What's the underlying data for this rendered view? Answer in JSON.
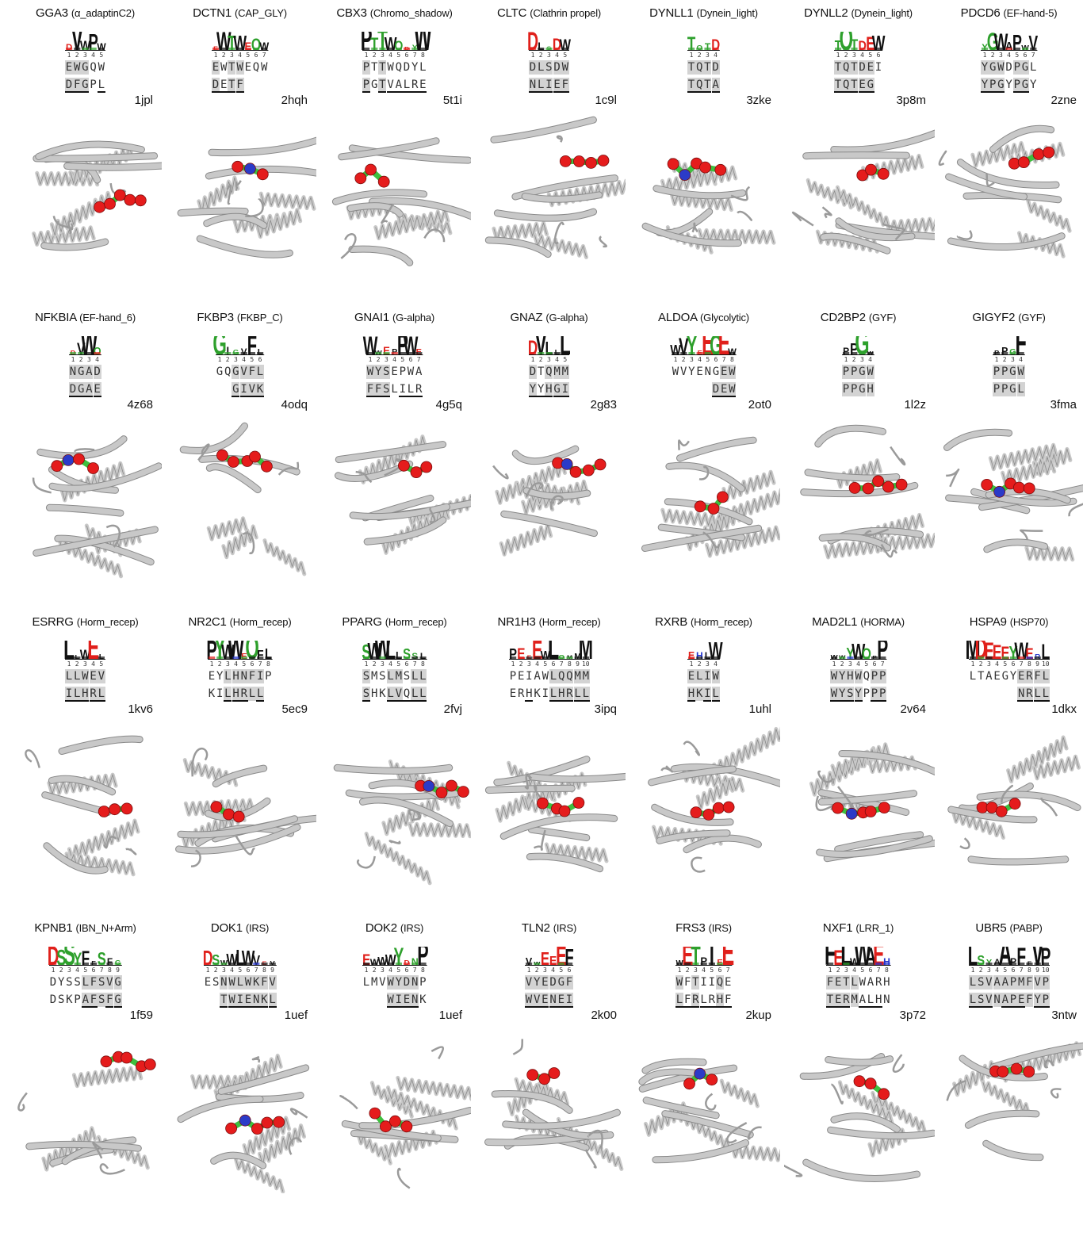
{
  "panels": [
    {
      "gene": "GGA3",
      "family": "(α_adaptinC2)",
      "pdb": "1jpl",
      "seq1": "EWGQW",
      "seq2": "DFGPL",
      "logo": "DVWPW",
      "hl1": [
        0,
        1,
        2
      ],
      "hl2": [
        0,
        1,
        2
      ],
      "ul": [
        0,
        1,
        2,
        4
      ],
      "r2": 0
    },
    {
      "gene": "DCTN1",
      "family": "(CAP_GLY)",
      "pdb": "2hqh",
      "seq1": "EWTWEQW",
      "seq2": "DETF",
      "logo": "EWTWEQW",
      "hl1": [
        0,
        2,
        3
      ],
      "hl2": [
        0,
        2,
        3
      ],
      "ul": [
        0,
        1,
        2,
        3
      ],
      "r2": 0
    },
    {
      "gene": "CBX3",
      "family": "(Chromo_shadow)",
      "pdb": "5t1i",
      "seq1": "PTTWQDYL",
      "seq2": "PGTVALRE",
      "logo": "PTTWQDYW",
      "hl1": [
        0,
        2
      ],
      "hl2": [
        0,
        2
      ],
      "ul": [
        0,
        2,
        3,
        4,
        5,
        6,
        7
      ],
      "r2": 0
    },
    {
      "gene": "CLTC",
      "family": "(Clathrin propel)",
      "pdb": "1c9l",
      "seq1": "DLSDW",
      "seq2": "NLIEF",
      "logo": "DLSDW",
      "hl1": [
        0,
        1,
        2,
        3,
        4
      ],
      "hl2": [
        0,
        1,
        2,
        3,
        4
      ],
      "ul": [
        0,
        1,
        2,
        3,
        4
      ],
      "r2": 0
    },
    {
      "gene": "DYNLL1",
      "family": "(Dynein_light)",
      "pdb": "3zke",
      "seq1": "TQTD",
      "seq2": "TQTA",
      "logo": "TQTD",
      "hl1": [
        0,
        1,
        2,
        3
      ],
      "hl2": [
        0,
        1,
        2,
        3
      ],
      "ul": [
        0,
        1,
        2,
        3
      ],
      "r2": 0
    },
    {
      "gene": "DYNLL2",
      "family": "(Dynein_light)",
      "pdb": "3p8m",
      "seq1": "TQTDEI",
      "seq2": "TQTEG",
      "logo": "TQTDEW",
      "hl1": [
        0,
        1,
        2,
        3,
        4
      ],
      "hl2": [
        0,
        1,
        2,
        3,
        4
      ],
      "ul": [
        0,
        1,
        2,
        3,
        4
      ],
      "r2": 0
    },
    {
      "gene": "PDCD6",
      "family": "(EF-hand-5)",
      "pdb": "2zne",
      "seq1": "YGWDPGL",
      "seq2": "YPGYPGY",
      "logo": "YGWAPWV",
      "hl1": [
        0,
        1,
        2,
        4,
        5
      ],
      "hl2": [
        0,
        1,
        2,
        4,
        5
      ],
      "ul": [
        0,
        1,
        2,
        4,
        5
      ],
      "r2": 0
    },
    {
      "gene": "NFKBIA",
      "family": "(EF-hand_6)",
      "pdb": "4z68",
      "seq1": "NGAD",
      "seq2": "DGAE",
      "logo": "DVWQ",
      "hl1": [
        0,
        1,
        2,
        3
      ],
      "hl2": [
        0,
        1,
        2,
        3
      ],
      "ul": [
        0,
        1,
        2,
        3
      ],
      "r2": 0
    },
    {
      "gene": "FKBP3",
      "family": "(FKBP_C)",
      "pdb": "4odq",
      "seq1": "GQGVFL",
      "seq2": "GIVK",
      "logo": "GIGVFL",
      "hl1": [
        2,
        3,
        4,
        5
      ],
      "hl2": [
        2,
        3,
        4,
        5
      ],
      "ul": [
        2,
        3,
        4,
        5
      ],
      "r2": 2
    },
    {
      "gene": "GNAI1",
      "family": "(G-alpha)",
      "pdb": "4g5q",
      "seq1": "WYSEPWA",
      "seq2": "FFSLILR",
      "logo": "WWEPPWE",
      "hl1": [
        0,
        1,
        2
      ],
      "hl2": [
        0,
        1,
        2
      ],
      "ul": [
        0,
        1,
        2,
        4,
        5,
        6
      ],
      "r2": 0
    },
    {
      "gene": "GNAZ",
      "family": "(G-alpha)",
      "pdb": "2g83",
      "seq1": "DTQMM",
      "seq2": "YYHGI",
      "logo": "DVLLL",
      "hl1": [
        0,
        2,
        3,
        4
      ],
      "hl2": [
        0,
        2,
        3,
        4
      ],
      "ul": [
        0,
        1,
        2,
        3,
        4
      ],
      "r2": 0
    },
    {
      "gene": "ALDOA",
      "family": "(Glycolytic)",
      "pdb": "2ot0",
      "seq1": "WVYENGEW",
      "seq2": "DEW",
      "logo": "WVYEEGEW",
      "hl1": [
        6,
        7
      ],
      "hl2": [
        5,
        6,
        7
      ],
      "ul": [
        5,
        6,
        7
      ],
      "r2": 5
    },
    {
      "gene": "CD2BP2",
      "family": "(GYF)",
      "pdb": "1l2z",
      "seq1": "PPGW",
      "seq2": "PPGH",
      "logo": "PPGW",
      "hl1": [
        0,
        1,
        2,
        3
      ],
      "hl2": [
        0,
        1,
        2,
        3
      ],
      "ul": [],
      "r2": 0
    },
    {
      "gene": "GIGYF2",
      "family": "(GYF)",
      "pdb": "3fma",
      "seq1": "PPGW",
      "seq2": "PPGL",
      "logo": "PPGF",
      "hl1": [
        0,
        1,
        2,
        3
      ],
      "hl2": [
        0,
        1,
        2,
        3
      ],
      "ul": [],
      "r2": 0
    },
    {
      "gene": "ESRRG",
      "family": "(Horm_recep)",
      "pdb": "1kv6",
      "seq1": "LLWEV",
      "seq2": "ILHRL",
      "logo": "LLWEL",
      "hl1": [
        0,
        1,
        2,
        3,
        4
      ],
      "hl2": [
        0,
        1,
        2,
        3,
        4
      ],
      "ul": [
        0,
        1,
        2,
        3,
        4
      ],
      "r2": 0
    },
    {
      "gene": "NR2C1",
      "family": "(Horm_recep)",
      "pdb": "5ec9",
      "seq1": "EYLHNFIP",
      "seq2": "KILHRLL",
      "logo": "PYWWEQFL",
      "hl1": [
        2,
        3,
        4,
        5,
        6
      ],
      "hl2": [
        2,
        3,
        4,
        5,
        6
      ],
      "ul": [
        2,
        3,
        4,
        6,
        7
      ],
      "r2": 0
    },
    {
      "gene": "PPARG",
      "family": "(Horm_recep)",
      "pdb": "2fvj",
      "seq1": "SMSLMSLL",
      "seq2": "SHKLVQLL",
      "logo": "SWWLLSSL",
      "hl1": [
        0,
        3,
        4,
        6,
        7
      ],
      "hl2": [
        0,
        3,
        4,
        6,
        7
      ],
      "ul": [
        0,
        3,
        4,
        5,
        6,
        7
      ],
      "r2": 0
    },
    {
      "gene": "NR1H3",
      "family": "(Horm_recep)",
      "pdb": "3ipq",
      "seq1": "PEIAWLQQMM",
      "seq2": "ERHKILHRLL",
      "logo": "PEEEWLQMMM",
      "hl1": [
        5,
        6,
        7,
        8,
        9
      ],
      "hl2": [
        5,
        6,
        7,
        8,
        9
      ],
      "ul": [
        2,
        5,
        6,
        7,
        8,
        9
      ],
      "r2": 0
    },
    {
      "gene": "RXRB",
      "family": "(Horm_recep)",
      "pdb": "1uhl",
      "seq1": "ELIW",
      "seq2": "HKIL",
      "logo": "EHLW",
      "hl1": [
        0,
        1,
        2,
        3
      ],
      "hl2": [
        0,
        1,
        2,
        3
      ],
      "ul": [
        0,
        2,
        3
      ],
      "r2": 0
    },
    {
      "gene": "MAD2L1",
      "family": "(HORMA)",
      "pdb": "2v64",
      "seq1": "WYHWQPP",
      "seq2": "WYSYPPP",
      "logo": "WWYWQPP",
      "hl1": [
        0,
        1,
        2,
        3,
        5,
        6
      ],
      "hl2": [
        0,
        1,
        2,
        3,
        5,
        6
      ],
      "ul": [
        0,
        1,
        2,
        3,
        5,
        6
      ],
      "r2": 0
    },
    {
      "gene": "HSPA9",
      "family": "(HSP70)",
      "pdb": "1dkx",
      "seq1": "LTAEGYERFL",
      "seq2": "NRLL",
      "logo": "MDEEEYWERL",
      "hl1": [
        6,
        7,
        8,
        9
      ],
      "hl2": [
        6,
        7,
        8,
        9
      ],
      "ul": [
        6,
        7,
        8,
        9
      ],
      "r2": 6
    },
    {
      "gene": "KPNB1",
      "family": "(IBN_N+Arm)",
      "pdb": "1f59",
      "seq1": "DYSSLFSVG",
      "seq2": "DSKPAFSFG",
      "logo": "DSSYFFSFG",
      "hl1": [
        4,
        5,
        6,
        7,
        8
      ],
      "hl2": [
        4,
        5,
        6,
        7,
        8
      ],
      "ul": [
        4,
        5,
        7,
        8
      ],
      "r2": 0
    },
    {
      "gene": "DOK1",
      "family": "(IRS)",
      "pdb": "1uef",
      "seq1": "ESNWLWKFV",
      "seq2": "TWIENKL",
      "logo": "DSWWLWVEV",
      "hl1": [
        2,
        3,
        4,
        5,
        6,
        7,
        8
      ],
      "hl2": [
        2,
        3,
        4,
        5,
        6,
        7,
        8
      ],
      "ul": [
        2,
        3,
        4,
        5,
        6,
        7,
        8
      ],
      "r2": 2
    },
    {
      "gene": "DOK2",
      "family": "(IRS)",
      "pdb": "1uef",
      "seq1": "LMVWYDNP",
      "seq2": "WIENK",
      "logo": "EWWWYDNP",
      "hl1": [
        3,
        4,
        5,
        6
      ],
      "hl2": [
        3,
        4,
        5,
        6
      ],
      "ul": [
        3,
        4,
        5,
        6
      ],
      "r2": 3
    },
    {
      "gene": "TLN2",
      "family": "(IRS)",
      "pdb": "2k00",
      "seq1": "VYEDGF",
      "seq2": "WVENEI",
      "logo": "VWEEEF",
      "hl1": [
        0,
        1,
        2,
        3,
        4,
        5
      ],
      "hl2": [
        0,
        1,
        2,
        3,
        4,
        5
      ],
      "ul": [
        0,
        1,
        2,
        3,
        4,
        5
      ],
      "r2": 0
    },
    {
      "gene": "FRS3",
      "family": "(IRS)",
      "pdb": "2kup",
      "seq1": "WFTIIQE",
      "seq2": "LFRLRHF",
      "logo": "WETPIEE",
      "hl1": [
        0,
        2,
        5
      ],
      "hl2": [
        0,
        2,
        5
      ],
      "ul": [
        0,
        1,
        2,
        3,
        4,
        5,
        6
      ],
      "r2": 0
    },
    {
      "gene": "NXF1",
      "family": "(LRR_1)",
      "pdb": "3p72",
      "seq1": "FETLWARH",
      "seq2": "TERMALHN",
      "logo": "FELWWAEH",
      "hl1": [
        0,
        1,
        2,
        3
      ],
      "hl2": [
        0,
        1,
        2,
        3
      ],
      "ul": [
        0,
        1,
        2,
        4,
        5,
        6
      ],
      "r2": 0
    },
    {
      "gene": "UBR5",
      "family": "(PABP)",
      "pdb": "3ntw",
      "seq1": "LSVAAPMFVP",
      "seq2": "LSVNAPEFYP",
      "logo": "LSYAAPFFVP",
      "hl1": [
        0,
        1,
        2,
        3,
        4,
        5,
        6,
        7,
        8,
        9
      ],
      "hl2": [
        0,
        1,
        2,
        3,
        4,
        5,
        6,
        7,
        8,
        9
      ],
      "ul": [
        0,
        1,
        2,
        4,
        5,
        6,
        8,
        9
      ],
      "r2": 0
    }
  ],
  "colors": {
    "hydrophobic": "#111111",
    "polar": "#2ea02c",
    "acidic": "#e0201b",
    "basic": "#2233cc",
    "highlight": "#d3d3d3",
    "protein": "#c8c8c8",
    "ligand_carbon": "#3fbf3f",
    "ligand_oxygen": "#e51c1c",
    "ligand_nitrogen": "#2b3bc8"
  }
}
